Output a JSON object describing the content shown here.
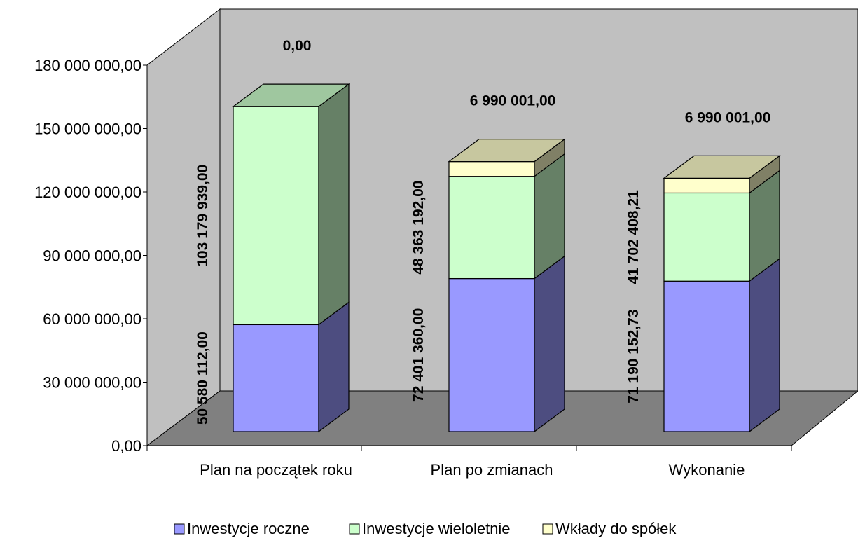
{
  "chart_data": {
    "type": "bar",
    "stacked": true,
    "three_d": true,
    "categories": [
      "Plan na początek roku",
      "Plan po zmianach",
      "Wykonanie"
    ],
    "series": [
      {
        "name": "Inwestycje roczne",
        "values": [
          50580112.0,
          72401360.0,
          71190152.73
        ],
        "labels": [
          "50 580 112,00",
          "72 401 360,00",
          "71 190 152,73"
        ],
        "color": "#9999ff"
      },
      {
        "name": "Inwestycje wieloletnie",
        "values": [
          103179939.0,
          48363192.0,
          41702408.21
        ],
        "labels": [
          "103 179 939,00",
          "48 363 192,00",
          "41 702 408,21"
        ],
        "color": "#ccffcc"
      },
      {
        "name": "Wkłady do spółek",
        "values": [
          0.0,
          6990001.0,
          6990001.0
        ],
        "labels": [
          "0,00",
          "6 990 001,00",
          "6 990 001,00"
        ],
        "color": "#ffffcc"
      }
    ],
    "ylim": [
      0,
      180000000
    ],
    "yticks": [
      0,
      30000000,
      60000000,
      90000000,
      120000000,
      150000000,
      180000000
    ],
    "ytick_labels": [
      "0,00",
      "30 000 000,00",
      "60 000 000,00",
      "90 000 000,00",
      "120 000 000,00",
      "150 000 000,00",
      "180 000 000,00"
    ],
    "legend_position": "bottom",
    "wall_color": "#c0c0c0",
    "floor_color": "#808080"
  }
}
